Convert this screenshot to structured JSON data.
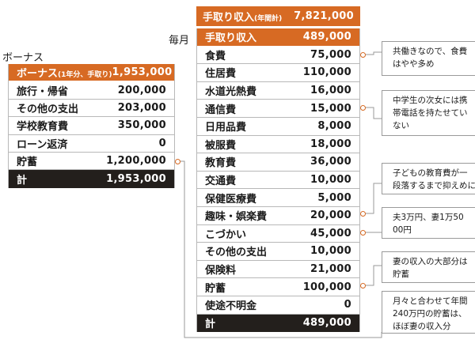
{
  "bonus": {
    "heading": "ボーナス",
    "header": {
      "label": "ボーナス",
      "sub": "(1年分、手取り)",
      "value": "1,953,000"
    },
    "items": [
      {
        "label": "旅行・帰省",
        "value": "200,000"
      },
      {
        "label": "その他の支出",
        "value": "203,000"
      },
      {
        "label": "学校教育費",
        "value": "350,000"
      },
      {
        "label": "ローン返済",
        "value": "0"
      },
      {
        "label": "貯蓄",
        "value": "1,200,000"
      }
    ],
    "total": {
      "label": "計",
      "value": "1,953,000"
    }
  },
  "annual": {
    "label": "手取り収入",
    "sub": "(年間計)",
    "value": "7,821,000"
  },
  "monthly": {
    "heading": "毎月",
    "header": {
      "label": "手取り収入",
      "value": "489,000"
    },
    "items": [
      {
        "label": "食費",
        "value": "75,000"
      },
      {
        "label": "住居費",
        "value": "110,000"
      },
      {
        "label": "水道光熱費",
        "value": "16,000"
      },
      {
        "label": "通信費",
        "value": "15,000"
      },
      {
        "label": "日用品費",
        "value": "8,000"
      },
      {
        "label": "被服費",
        "value": "18,000"
      },
      {
        "label": "教育費",
        "value": "36,000"
      },
      {
        "label": "交通費",
        "value": "10,000"
      },
      {
        "label": "保健医療費",
        "value": "5,000"
      },
      {
        "label": "趣味・娯楽費",
        "value": "20,000"
      },
      {
        "label": "こづかい",
        "value": "45,000"
      },
      {
        "label": "その他の支出",
        "value": "10,000"
      },
      {
        "label": "保険料",
        "value": "21,000"
      },
      {
        "label": "貯蓄",
        "value": "100,000"
      },
      {
        "label": "使途不明金",
        "value": "0"
      }
    ],
    "total": {
      "label": "計",
      "value": "489,000"
    }
  },
  "notes": [
    {
      "lines": [
        "共働きなので、食費",
        "はやや多め"
      ]
    },
    {
      "lines": [
        "中学生の次女には携",
        "帯電話を持たせてい",
        "ない"
      ]
    },
    {
      "lines": [
        "子どもの教育費が一",
        "段落するまで抑えめに"
      ]
    },
    {
      "lines": [
        "夫3万円、妻1万50",
        "00円"
      ]
    },
    {
      "lines": [
        "妻の収入の大部分は",
        "貯蓄"
      ]
    },
    {
      "lines": [
        "月々と合わせて年間",
        "240万円の貯蓄は、",
        "ほぼ妻の収入分"
      ]
    }
  ],
  "colors": {
    "accent": "#d76a23",
    "dark": "#231f1c",
    "rule": "#b8b8b8"
  }
}
